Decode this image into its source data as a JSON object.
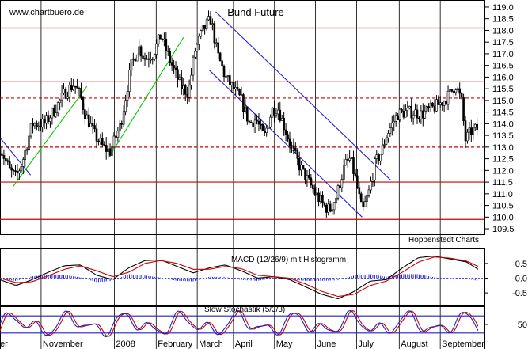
{
  "chart_data": {
    "type": "candlestick",
    "title": "Bund Future",
    "watermark": "www.chartbuero.de",
    "credit": "Hoppenstedt Charts",
    "x_axis": {
      "labels": [
        "er",
        "November",
        "2008",
        "February",
        "March",
        "April",
        "May",
        "June",
        "July",
        "August",
        "September"
      ],
      "label_x_days": [
        0,
        55,
        146,
        198,
        249,
        294,
        345,
        396,
        447,
        500,
        551
      ],
      "day_range": [
        0,
        602
      ]
    },
    "price_axis": {
      "ticks": [
        "119.0",
        "118.5",
        "118.0",
        "117.5",
        "117.0",
        "116.5",
        "116.0",
        "115.5",
        "115.0",
        "114.5",
        "114.0",
        "113.5",
        "113.0",
        "112.5",
        "112.0",
        "111.5",
        "111.0",
        "110.5",
        "110.0",
        "109.5"
      ],
      "range": [
        109.4,
        119.1
      ]
    },
    "price_series": {
      "anchor_days": [
        0,
        12,
        20,
        28,
        40,
        55,
        68,
        80,
        92,
        100,
        105,
        118,
        128,
        137,
        150,
        163,
        172,
        180,
        190,
        200,
        208,
        216,
        225,
        234,
        242,
        252,
        262,
        270,
        280,
        290,
        300,
        310,
        318,
        328,
        338,
        345,
        352,
        362,
        372,
        382,
        392,
        402,
        410,
        418,
        428,
        435,
        442,
        450,
        458,
        466,
        474,
        480,
        486,
        494,
        504,
        514,
        524,
        534,
        544,
        552,
        560,
        566,
        574,
        578,
        586,
        594
      ],
      "anchor_prices": [
        113.0,
        112.0,
        111.7,
        112.4,
        114.0,
        114.0,
        114.6,
        115.3,
        115.7,
        115.2,
        114.5,
        113.5,
        113.0,
        112.8,
        114.0,
        116.5,
        117.3,
        116.8,
        117.0,
        117.8,
        117.0,
        116.3,
        115.6,
        115.3,
        117.1,
        118.0,
        118.5,
        117.0,
        116.0,
        115.5,
        115.0,
        114.0,
        114.2,
        113.4,
        114.6,
        114.7,
        114.0,
        113.0,
        112.2,
        111.6,
        111.0,
        110.5,
        110.3,
        110.9,
        112.2,
        112.5,
        111.6,
        110.2,
        111.0,
        112.3,
        112.8,
        113.5,
        113.9,
        114.4,
        114.5,
        114.5,
        114.4,
        114.6,
        114.8,
        115.0,
        115.3,
        115.7,
        114.9,
        113.3,
        113.7,
        113.8
      ]
    },
    "horizontal_lines": [
      {
        "value": 118.1,
        "style": "solid",
        "color": "#cc0000"
      },
      {
        "value": 115.8,
        "style": "solid",
        "color": "#cc0000"
      },
      {
        "value": 115.1,
        "style": "dashed",
        "color": "#cc0000"
      },
      {
        "value": 113.0,
        "style": "dashed",
        "color": "#cc0000"
      },
      {
        "value": 111.5,
        "style": "solid",
        "color": "#cc0000"
      },
      {
        "value": 109.9,
        "style": "solid",
        "color": "#cc0000"
      }
    ],
    "trend_lines": [
      {
        "color": "#00cc00",
        "from": [
          16,
          111.3
        ],
        "to": [
          108,
          115.6
        ]
      },
      {
        "color": "#00cc00",
        "from": [
          136,
          112.6
        ],
        "to": [
          228,
          117.7
        ]
      },
      {
        "color": "#2222cc",
        "from": [
          268,
          118.8
        ],
        "to": [
          485,
          111.6
        ]
      },
      {
        "color": "#2222cc",
        "from": [
          260,
          116.3
        ],
        "to": [
          450,
          110.0
        ]
      },
      {
        "color": "#2222cc",
        "from": [
          0,
          113.4
        ],
        "to": [
          38,
          111.8
        ]
      }
    ],
    "macd": {
      "label": "MACD (12/26/9) mit Histogramm",
      "ticks": [
        "0.5",
        "0.0",
        "-0.5"
      ],
      "range": [
        -0.9,
        0.9
      ],
      "anchor_days": [
        0,
        20,
        40,
        60,
        80,
        100,
        120,
        140,
        160,
        180,
        200,
        220,
        240,
        260,
        280,
        300,
        320,
        340,
        360,
        380,
        400,
        420,
        440,
        460,
        480,
        500,
        520,
        540,
        560,
        580,
        594
      ],
      "macd_line": [
        -0.05,
        -0.25,
        -0.05,
        0.2,
        0.42,
        0.45,
        0.1,
        -0.05,
        0.35,
        0.6,
        0.62,
        0.4,
        0.18,
        0.35,
        0.45,
        0.25,
        0.0,
        0.05,
        -0.05,
        -0.3,
        -0.55,
        -0.7,
        -0.45,
        -0.1,
        -0.05,
        0.35,
        0.7,
        0.75,
        0.65,
        0.55,
        0.3
      ],
      "signal_line": [
        0.0,
        -0.15,
        -0.12,
        0.08,
        0.3,
        0.42,
        0.25,
        0.05,
        0.2,
        0.5,
        0.6,
        0.5,
        0.3,
        0.3,
        0.4,
        0.32,
        0.1,
        0.05,
        0.0,
        -0.2,
        -0.45,
        -0.62,
        -0.55,
        -0.25,
        -0.1,
        0.2,
        0.55,
        0.72,
        0.68,
        0.58,
        0.4
      ],
      "line_colors": [
        "#000000",
        "#cc0000"
      ],
      "histogram_color": "#2222cc"
    },
    "stochastic": {
      "label": "Slow Stochastik (5/3/3)",
      "ticks": [
        "50"
      ],
      "range": [
        0,
        100
      ],
      "upper_level": 80,
      "lower_level": 20,
      "level_color": "#2222cc",
      "pk_color": "#2222cc",
      "pd_color": "#cc0000"
    }
  }
}
